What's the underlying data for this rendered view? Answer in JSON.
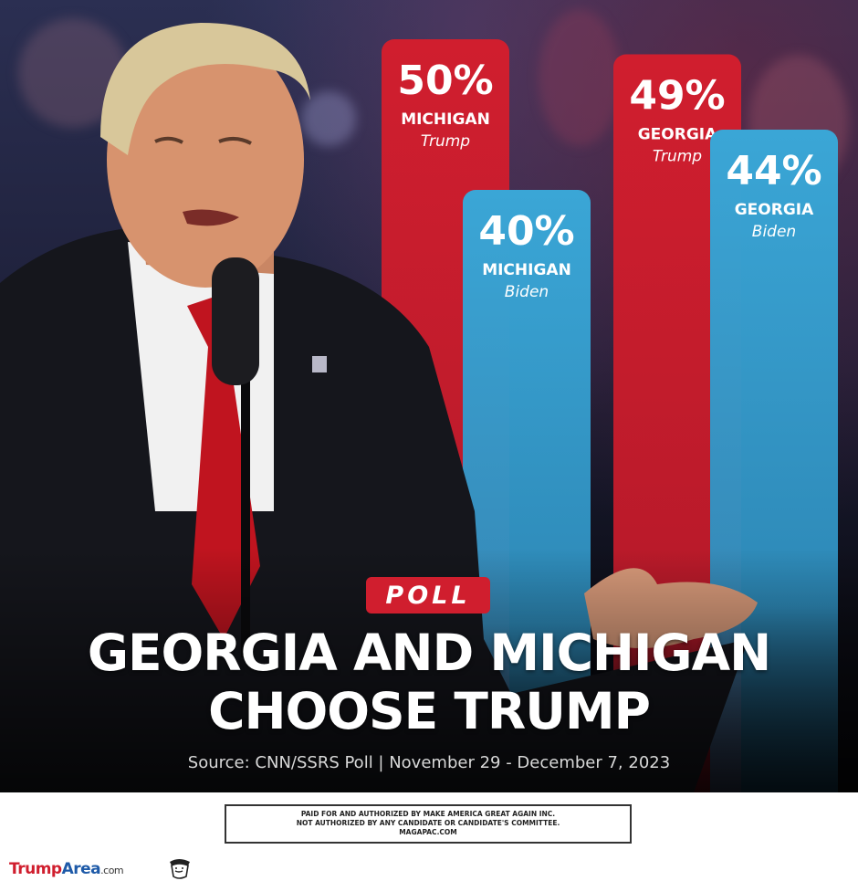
{
  "badge": "POLL",
  "headline": {
    "line1": "GEORGIA AND MICHIGAN",
    "line2": "CHOOSE TRUMP"
  },
  "source": "Source: CNN/SSRS Poll | November 29 - December 7, 2023",
  "disclaimer": {
    "line1": "PAID FOR AND AUTHORIZED BY MAKE AMERICA GREAT AGAIN INC.",
    "line2": "NOT AUTHORIZED BY ANY CANDIDATE OR CANDIDATE'S COMMITTEE.",
    "line3": "MAGAPAC.COM"
  },
  "footer": {
    "brand_part1": "Trump",
    "brand_part2": "Area",
    "brand_suffix": ".com",
    "icon": "caricature-icon"
  },
  "colors": {
    "trump": "#d01e2e",
    "biden": "#3aa6d6"
  },
  "chart_data": {
    "type": "bar",
    "bars": [
      {
        "label": "50%",
        "state": "MICHIGAN",
        "candidate": "Trump",
        "value": 50,
        "color": "#d01e2e"
      },
      {
        "label": "40%",
        "state": "MICHIGAN",
        "candidate": "Biden",
        "value": 40,
        "color": "#3aa6d6"
      },
      {
        "label": "49%",
        "state": "GEORGIA",
        "candidate": "Trump",
        "value": 49,
        "color": "#d01e2e"
      },
      {
        "label": "44%",
        "state": "GEORGIA",
        "candidate": "Biden",
        "value": 44,
        "color": "#3aa6d6"
      }
    ]
  }
}
